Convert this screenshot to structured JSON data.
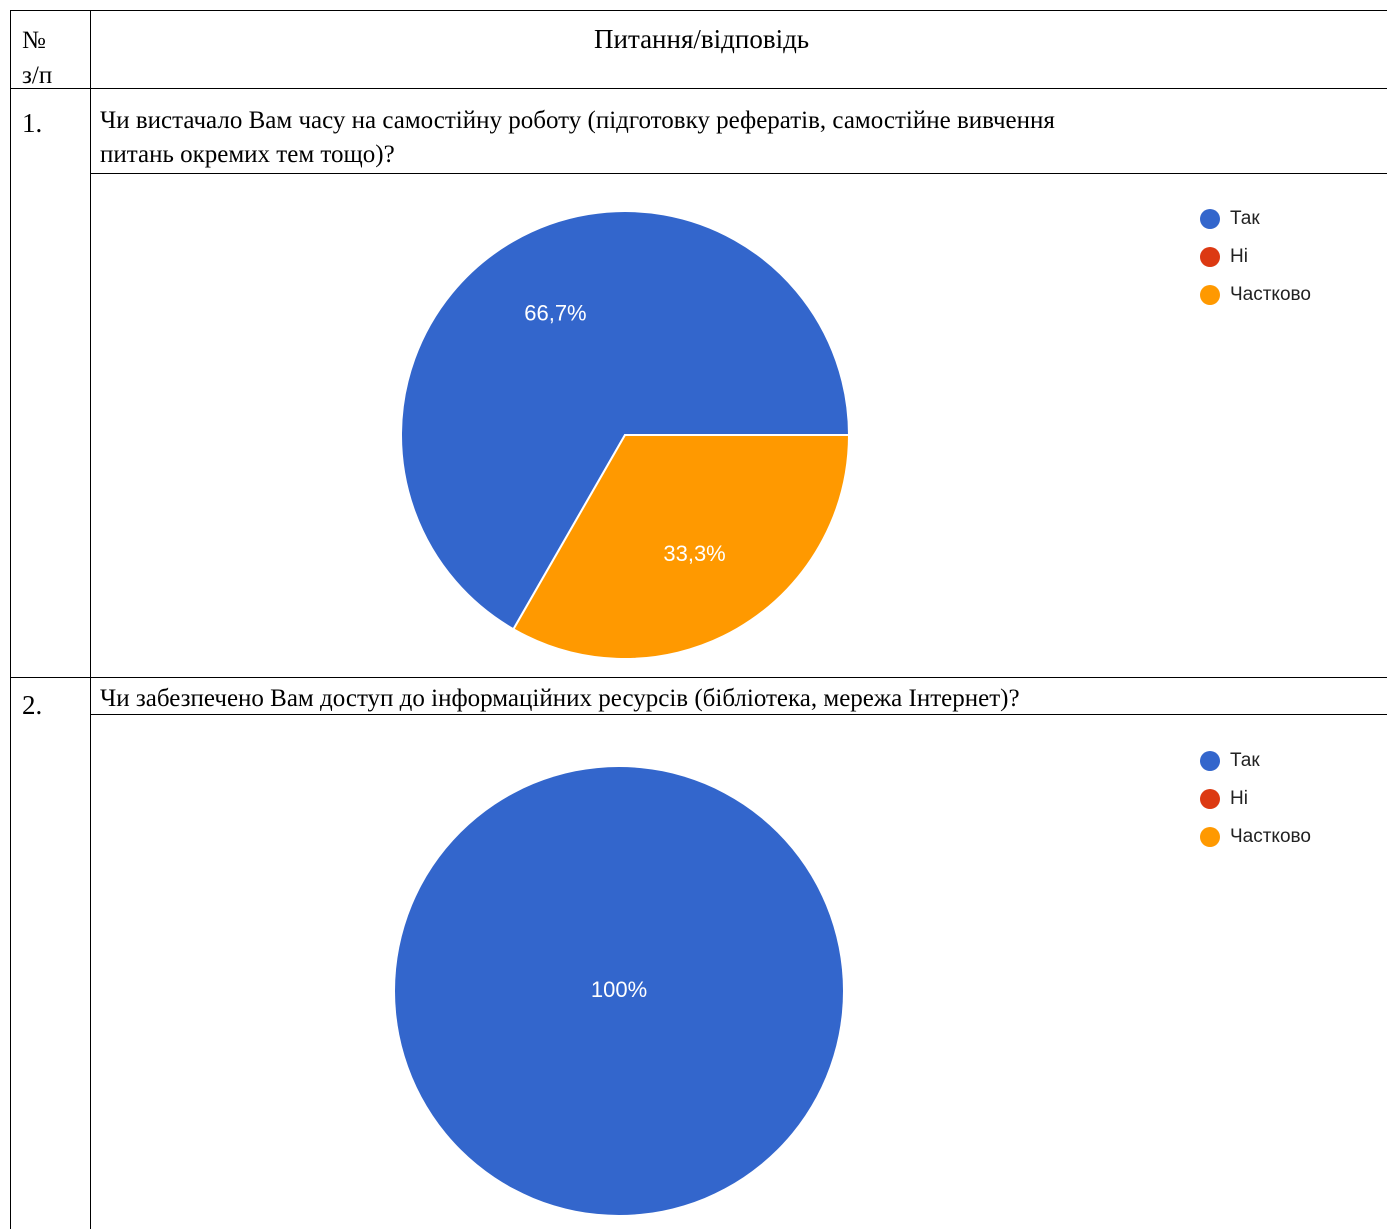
{
  "table": {
    "header": {
      "number_col": "№",
      "number_col_sub": "з/п",
      "question_col": "Питання/відповідь"
    },
    "rows": [
      {
        "number": "1.",
        "question_line1": "Чи вистачало Вам часу на самостійну роботу (підготовку рефератів, самостійне вивчення",
        "question_line2": "питань окремих тем тощо)?"
      },
      {
        "number": "2.",
        "question_line1": "Чи забезпечено Вам доступ до інформаційних ресурсів (бібліотека, мережа Інтернет)?"
      }
    ]
  },
  "colors": {
    "tak": "#3366cc",
    "ni": "#dc3912",
    "chastkovo": "#ff9900"
  },
  "chart_data": [
    {
      "type": "pie",
      "categories": [
        "Так",
        "Ні",
        "Частково"
      ],
      "values": [
        66.7,
        0,
        33.3
      ],
      "labels": [
        "66,7%",
        "",
        "33,3%"
      ],
      "colors": [
        "#3366cc",
        "#dc3912",
        "#ff9900"
      ],
      "legend": [
        "Так",
        "Ні",
        "Частково"
      ],
      "legend_position": "right"
    },
    {
      "type": "pie",
      "categories": [
        "Так",
        "Ні",
        "Частково"
      ],
      "values": [
        100,
        0,
        0
      ],
      "labels": [
        "100%",
        "",
        ""
      ],
      "colors": [
        "#3366cc",
        "#dc3912",
        "#ff9900"
      ],
      "legend": [
        "Так",
        "Ні",
        "Частково"
      ],
      "legend_position": "right"
    }
  ]
}
